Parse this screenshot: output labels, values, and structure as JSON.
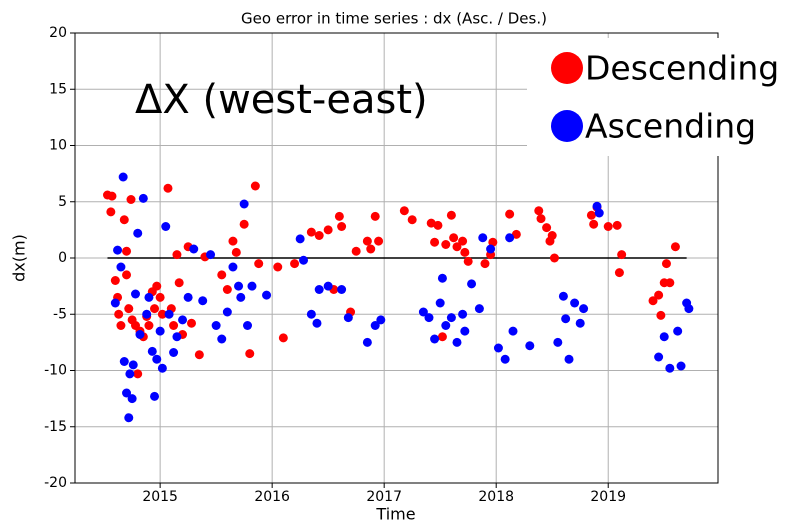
{
  "chart_data": {
    "type": "scatter",
    "title": "Geo error in time series : dx (Asc. / Des.)",
    "annotation": "ΔX (west-east)",
    "x_label": "Time",
    "y_label": "dx(m)",
    "xlim": [
      2014.24,
      2019.98
    ],
    "ylim": [
      -20,
      20
    ],
    "xticks": [
      2015,
      2016,
      2017,
      2018,
      2019
    ],
    "yticks": [
      -20,
      -15,
      -10,
      -5,
      0,
      5,
      10,
      15,
      20
    ],
    "grid": true,
    "legend": "upper right",
    "hline": {
      "y": 0,
      "xmin": 2014.53,
      "xmax": 2019.7,
      "color": "#000000"
    },
    "series": [
      {
        "name": "Descending",
        "color": "#ff0000",
        "x": [
          2014.53,
          2014.57,
          2014.56,
          2014.6,
          2014.62,
          2014.63,
          2014.65,
          2014.68,
          2014.7,
          2014.7,
          2014.72,
          2014.74,
          2014.75,
          2014.78,
          2014.8,
          2014.82,
          2014.85,
          2014.88,
          2014.9,
          2014.93,
          2014.95,
          2014.97,
          2015.0,
          2015.02,
          2015.07,
          2015.1,
          2015.12,
          2015.15,
          2015.17,
          2015.2,
          2015.25,
          2015.28,
          2015.35,
          2015.4,
          2015.55,
          2015.6,
          2015.65,
          2015.68,
          2015.75,
          2015.8,
          2015.85,
          2015.88,
          2016.05,
          2016.1,
          2016.2,
          2016.35,
          2016.42,
          2016.5,
          2016.55,
          2016.6,
          2016.62,
          2016.7,
          2016.75,
          2016.85,
          2016.88,
          2016.92,
          2016.95,
          2017.18,
          2017.25,
          2017.42,
          2017.45,
          2017.48,
          2017.52,
          2017.55,
          2017.6,
          2017.62,
          2017.65,
          2017.7,
          2017.72,
          2017.75,
          2017.95,
          2017.97,
          2017.9,
          2018.12,
          2018.18,
          2018.38,
          2018.4,
          2018.45,
          2018.48,
          2018.5,
          2018.52,
          2018.85,
          2018.87,
          2018.9,
          2019.0,
          2019.08,
          2019.1,
          2019.12,
          2019.4,
          2019.45,
          2019.47,
          2019.5,
          2019.52,
          2019.55,
          2019.6
        ],
        "values": [
          5.6,
          5.5,
          4.1,
          -2.0,
          -3.5,
          -5.0,
          -6.0,
          3.4,
          0.6,
          -1.5,
          -4.5,
          5.2,
          -5.5,
          -6.0,
          -10.3,
          -6.5,
          -7.0,
          -5.2,
          -6.0,
          -3.0,
          -4.5,
          -2.5,
          -3.5,
          -5.0,
          6.2,
          -4.5,
          -6.0,
          0.3,
          -2.2,
          -6.8,
          1.0,
          -5.8,
          -8.6,
          0.1,
          -1.5,
          -2.8,
          1.5,
          0.5,
          3.0,
          -8.5,
          6.4,
          -0.5,
          -0.8,
          -7.1,
          -0.5,
          2.3,
          2.0,
          2.5,
          -2.8,
          3.7,
          2.8,
          -4.8,
          0.6,
          1.5,
          0.8,
          3.7,
          1.5,
          4.2,
          3.4,
          3.1,
          1.4,
          2.9,
          -7.0,
          1.2,
          3.8,
          1.8,
          1.0,
          1.5,
          0.5,
          -0.3,
          0.3,
          1.4,
          -0.5,
          3.9,
          2.1,
          4.2,
          3.5,
          2.7,
          1.5,
          2.0,
          0.0,
          3.8,
          3.0,
          4.5,
          2.8,
          2.9,
          -1.3,
          0.3,
          -3.8,
          -3.3,
          -5.1,
          -2.2,
          -0.5,
          -2.2,
          1.0
        ]
      },
      {
        "name": "Ascending",
        "color": "#0000ff",
        "x": [
          2014.6,
          2014.62,
          2014.65,
          2014.67,
          2014.68,
          2014.7,
          2014.72,
          2014.73,
          2014.75,
          2014.76,
          2014.78,
          2014.8,
          2014.82,
          2014.85,
          2014.88,
          2014.9,
          2014.93,
          2014.95,
          2014.97,
          2015.0,
          2015.02,
          2015.05,
          2015.08,
          2015.12,
          2015.15,
          2015.2,
          2015.25,
          2015.3,
          2015.38,
          2015.45,
          2015.5,
          2015.55,
          2015.6,
          2015.65,
          2015.7,
          2015.72,
          2015.75,
          2015.78,
          2015.82,
          2015.95,
          2016.25,
          2016.28,
          2016.35,
          2016.4,
          2016.42,
          2016.5,
          2016.62,
          2016.68,
          2016.85,
          2016.92,
          2016.97,
          2017.35,
          2017.4,
          2017.45,
          2017.5,
          2017.52,
          2017.55,
          2017.6,
          2017.65,
          2017.7,
          2017.72,
          2017.78,
          2017.85,
          2017.88,
          2017.95,
          2018.02,
          2018.08,
          2018.12,
          2018.15,
          2018.3,
          2018.55,
          2018.6,
          2018.62,
          2018.65,
          2018.7,
          2018.75,
          2018.78,
          2018.9,
          2018.92,
          2019.45,
          2019.5,
          2019.55,
          2019.62,
          2019.65,
          2019.7,
          2019.72
        ],
        "values": [
          -4.0,
          0.7,
          -0.8,
          7.2,
          -9.2,
          -12.0,
          -14.2,
          -10.3,
          -12.5,
          -9.5,
          -3.2,
          2.2,
          -6.8,
          5.3,
          -5.0,
          -3.5,
          -8.3,
          -12.3,
          -9.0,
          -6.5,
          -9.8,
          2.8,
          -5.0,
          -8.4,
          -7.0,
          -5.5,
          -3.5,
          0.8,
          -3.8,
          0.3,
          -6.0,
          -7.2,
          -4.8,
          -0.8,
          -2.5,
          -3.5,
          4.8,
          -6.0,
          -2.5,
          -3.3,
          1.7,
          -0.2,
          -5.0,
          -5.8,
          -2.8,
          -2.5,
          -2.8,
          -5.3,
          -7.5,
          -6.0,
          -5.5,
          -4.8,
          -5.3,
          -7.2,
          -4.0,
          -1.8,
          -6.0,
          -5.3,
          -7.5,
          -5.0,
          -6.5,
          -2.3,
          -4.5,
          1.8,
          0.8,
          -8.0,
          -9.0,
          1.8,
          -6.5,
          -7.8,
          -7.5,
          -3.4,
          -5.4,
          -9.0,
          -4.0,
          -5.8,
          -4.5,
          4.6,
          4.0,
          -8.8,
          -7.0,
          -9.8,
          -6.5,
          -9.6,
          -4.0,
          -4.5
        ]
      }
    ]
  }
}
